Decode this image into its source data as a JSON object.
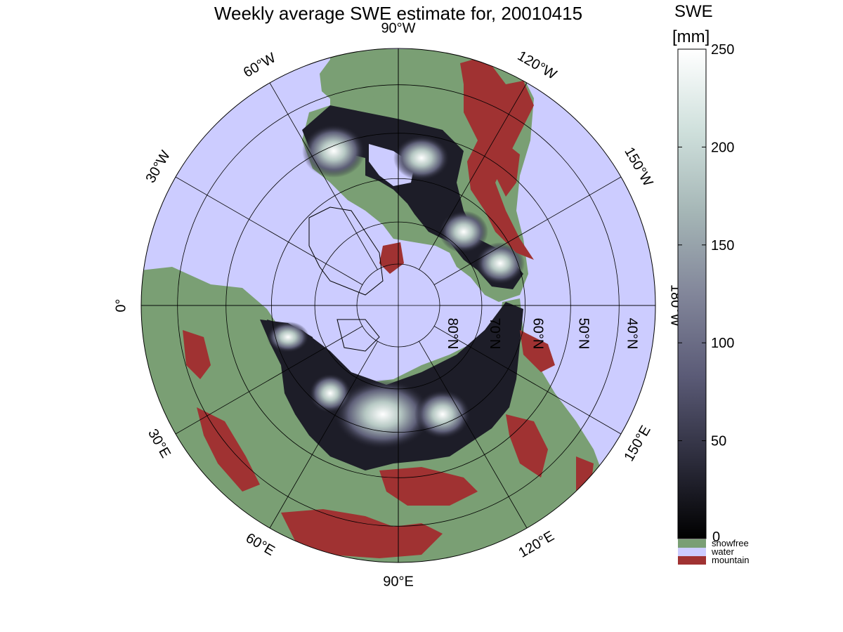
{
  "title": "Weekly average SWE estimate for, 20010415",
  "longitude_labels": [
    {
      "lon": 90,
      "text": "90°W"
    },
    {
      "lon": 60,
      "text": "60°W"
    },
    {
      "lon": 120,
      "text": "120°W"
    },
    {
      "lon": 30,
      "text": "30°W"
    },
    {
      "lon": 150,
      "text": "150°W"
    },
    {
      "lon": 0,
      "text": "0°"
    },
    {
      "lon": 180,
      "text": "180°W"
    },
    {
      "lon": -30,
      "text": "30°E"
    },
    {
      "lon": -150,
      "text": "150°E"
    },
    {
      "lon": -60,
      "text": "60°E"
    },
    {
      "lon": -120,
      "text": "120°E"
    },
    {
      "lon": -90,
      "text": "90°E"
    }
  ],
  "latitude_labels": [
    {
      "lat": 80,
      "text": "80°N"
    },
    {
      "lat": 70,
      "text": "70°N"
    },
    {
      "lat": 60,
      "text": "60°N"
    },
    {
      "lat": 50,
      "text": "50°N"
    },
    {
      "lat": 40,
      "text": "40°N"
    }
  ],
  "colorbar": {
    "title_line1": "SWE",
    "title_line2": "[mm]",
    "min": 0,
    "max": 250,
    "ticks": [
      0,
      50,
      100,
      150,
      200,
      250
    ],
    "gradient": [
      "#000000",
      "#2e2e3e",
      "#5b5b77",
      "#82869a",
      "#a5b6b6",
      "#cfe0dc",
      "#ffffff"
    ]
  },
  "categories": [
    {
      "label": "snowfree",
      "color": "#7a9f74"
    },
    {
      "label": "water",
      "color": "#ccccff"
    },
    {
      "label": "mountain",
      "color": "#a03232"
    }
  ]
}
